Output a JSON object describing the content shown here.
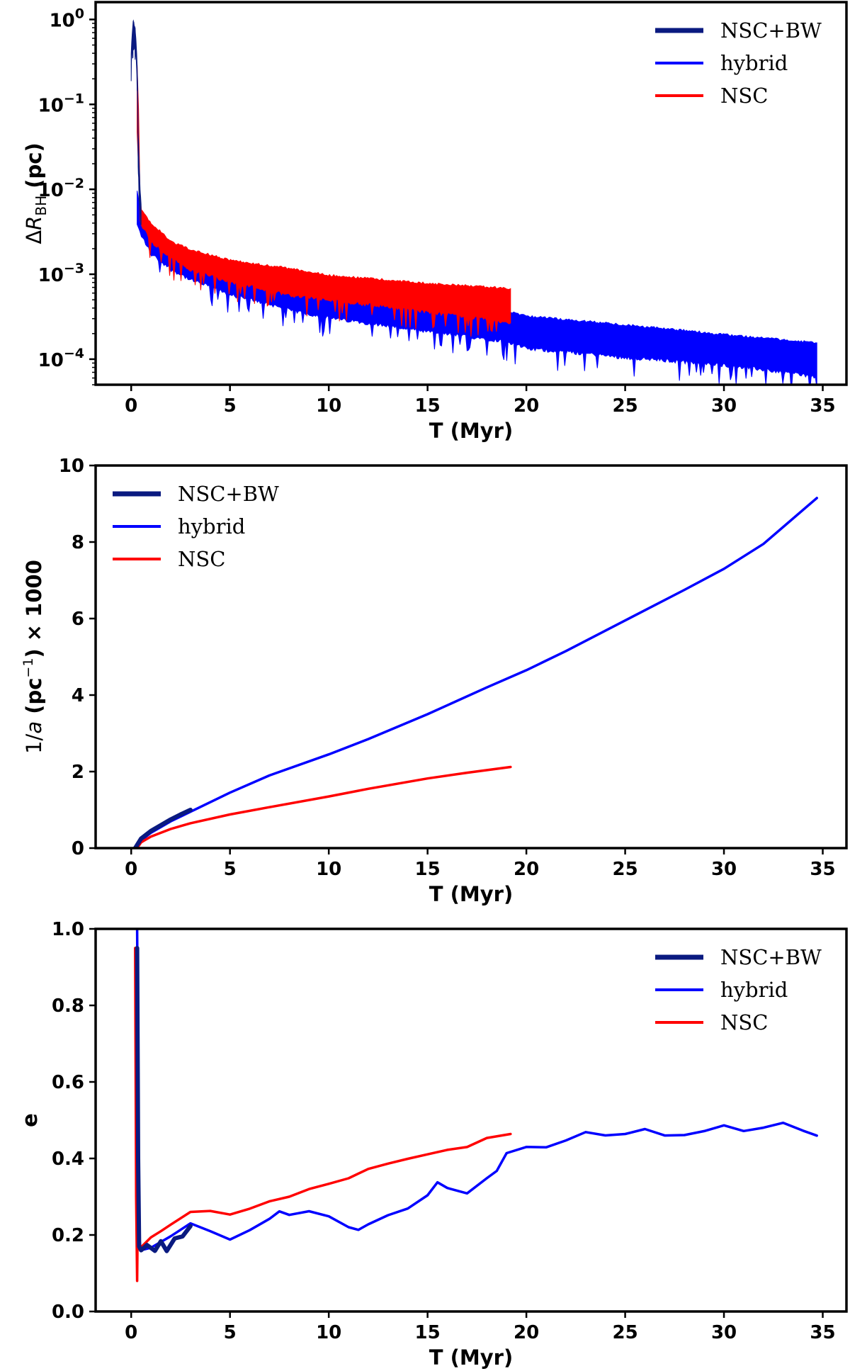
{
  "chart_data": [
    {
      "type": "line",
      "panel": "top",
      "title": "",
      "xlabel": "T (Myr)",
      "ylabel": "ΔR_BH (pc)",
      "ylabel_parts": {
        "delta": "Δ",
        "symbol": "R",
        "subscript": "BH",
        "unit": " (pc)"
      },
      "yscale": "log",
      "xlim": [
        -1.8,
        36.2
      ],
      "ylim": [
        5e-05,
        1.6
      ],
      "xticks": [
        0,
        5,
        10,
        15,
        20,
        25,
        30,
        35
      ],
      "xtick_labels": [
        "0",
        "5",
        "10",
        "15",
        "20",
        "25",
        "30",
        "35"
      ],
      "yticks": [
        0.0001,
        0.001,
        0.01,
        0.1,
        1
      ],
      "ytick_labels": [
        {
          "base": "10",
          "exp": "−4"
        },
        {
          "base": "10",
          "exp": "−3"
        },
        {
          "base": "10",
          "exp": "−2"
        },
        {
          "base": "10",
          "exp": "−1"
        },
        {
          "base": "10",
          "exp": "0"
        }
      ],
      "legend": {
        "position": "upper-right",
        "entries": [
          "NSC+BW",
          "hybrid",
          "NSC"
        ]
      },
      "series": [
        {
          "name": "NSC+BW",
          "color": "#0a1a80",
          "x": [
            0,
            0.1,
            0.2,
            0.3,
            0.35,
            0.4,
            0.45,
            0.5
          ],
          "upper": [
            0.4,
            1.0,
            0.8,
            0.3,
            0.05,
            0.02,
            0.01,
            0.007
          ],
          "lower": [
            0.3,
            0.7,
            0.5,
            0.2,
            0.02,
            0.008,
            0.005,
            0.004
          ]
        },
        {
          "name": "hybrid",
          "color": "#0000ff",
          "x": [
            0.3,
            0.5,
            1,
            2,
            3,
            5,
            8,
            10,
            15,
            19,
            20,
            25,
            30,
            34.7
          ],
          "upper": [
            0.01,
            0.005,
            0.0032,
            0.0022,
            0.0018,
            0.0012,
            0.0009,
            0.0007,
            0.0005,
            0.00038,
            0.00033,
            0.00026,
            0.0002,
            0.00016
          ],
          "lower": [
            0.004,
            0.003,
            0.0018,
            0.0012,
            0.0009,
            0.0006,
            0.0004,
            0.00032,
            0.00022,
            0.00017,
            0.00014,
            0.00011,
            9e-05,
            6.5e-05
          ]
        },
        {
          "name": "NSC",
          "color": "#ff0000",
          "x": [
            0.3,
            0.4,
            0.5,
            1,
            2,
            3,
            5,
            8,
            10,
            15,
            19.2
          ],
          "upper": [
            0.3,
            0.012,
            0.006,
            0.004,
            0.0025,
            0.002,
            0.0015,
            0.0012,
            0.001,
            0.0008,
            0.0007
          ],
          "lower": [
            0.05,
            0.005,
            0.004,
            0.0025,
            0.0016,
            0.0012,
            0.00085,
            0.0006,
            0.00052,
            0.00038,
            0.00028
          ]
        }
      ]
    },
    {
      "type": "line",
      "panel": "middle",
      "title": "",
      "xlabel": "T (Myr)",
      "ylabel": "1/a (pc⁻¹) × 1000",
      "ylabel_parts": {
        "prefix": "1/",
        "var": "a",
        "unit_open": " (pc",
        "exp": "−1",
        "unit_close": ") × 1000"
      },
      "yscale": "linear",
      "xlim": [
        -1.8,
        36.2
      ],
      "ylim": [
        0,
        10
      ],
      "xticks": [
        0,
        5,
        10,
        15,
        20,
        25,
        30,
        35
      ],
      "xtick_labels": [
        "0",
        "5",
        "10",
        "15",
        "20",
        "25",
        "30",
        "35"
      ],
      "yticks": [
        0,
        2,
        4,
        6,
        8,
        10
      ],
      "ytick_labels": [
        "0",
        "2",
        "4",
        "6",
        "8",
        "10"
      ],
      "legend": {
        "position": "upper-left",
        "entries": [
          "NSC+BW",
          "hybrid",
          "NSC"
        ]
      },
      "series": [
        {
          "name": "NSC+BW",
          "color": "#0a1a80",
          "x": [
            0.2,
            0.5,
            1,
            1.5,
            2,
            2.5,
            3
          ],
          "y": [
            0,
            0.25,
            0.45,
            0.6,
            0.75,
            0.88,
            1.0
          ]
        },
        {
          "name": "hybrid",
          "color": "#0000ff",
          "x": [
            0.2,
            0.5,
            1,
            2,
            3,
            5,
            7,
            10,
            12,
            15,
            18,
            20,
            22,
            25,
            28,
            30,
            32,
            34.7
          ],
          "y": [
            0,
            0.2,
            0.4,
            0.7,
            0.95,
            1.45,
            1.9,
            2.45,
            2.85,
            3.5,
            4.2,
            4.65,
            5.15,
            5.95,
            6.75,
            7.3,
            7.95,
            9.15
          ]
        },
        {
          "name": "NSC",
          "color": "#ff0000",
          "x": [
            0.3,
            0.5,
            1,
            2,
            3,
            5,
            7,
            10,
            12,
            15,
            17,
            19.2
          ],
          "y": [
            0,
            0.15,
            0.3,
            0.5,
            0.65,
            0.88,
            1.07,
            1.35,
            1.55,
            1.82,
            1.97,
            2.12
          ]
        }
      ]
    },
    {
      "type": "line",
      "panel": "bottom",
      "title": "",
      "xlabel": "T (Myr)",
      "ylabel": "e",
      "yscale": "linear",
      "xlim": [
        -1.8,
        36.2
      ],
      "ylim": [
        0,
        1
      ],
      "xticks": [
        0,
        5,
        10,
        15,
        20,
        25,
        30,
        35
      ],
      "xtick_labels": [
        "0",
        "5",
        "10",
        "15",
        "20",
        "25",
        "30",
        "35"
      ],
      "yticks": [
        0,
        0.2,
        0.4,
        0.6,
        0.8,
        1.0
      ],
      "ytick_labels": [
        "0.0",
        "0.2",
        "0.4",
        "0.6",
        "0.8",
        "1.0"
      ],
      "legend": {
        "position": "upper-right",
        "entries": [
          "NSC+BW",
          "hybrid",
          "NSC"
        ]
      },
      "series": [
        {
          "name": "NSC+BW",
          "color": "#0a1a80",
          "x": [
            0.3,
            0.35,
            0.4,
            0.5,
            0.8,
            1.2,
            1.5,
            1.8,
            2.2,
            2.6,
            3.0
          ],
          "y": [
            0.95,
            0.4,
            0.17,
            0.16,
            0.17,
            0.16,
            0.18,
            0.16,
            0.19,
            0.2,
            0.22
          ]
        },
        {
          "name": "hybrid",
          "color": "#0000ff",
          "x": [
            0.3,
            0.35,
            0.4,
            0.45,
            0.5,
            1,
            2,
            3,
            4,
            5,
            6,
            7,
            7.5,
            8,
            9,
            10,
            11,
            11.5,
            12,
            13,
            14,
            15,
            15.5,
            16,
            17,
            18,
            18.5,
            19,
            20,
            21,
            22,
            23,
            24,
            25,
            26,
            27,
            28,
            29,
            30,
            31,
            32,
            33,
            34,
            34.7
          ],
          "y": [
            1.0,
            0.6,
            0.2,
            0.17,
            0.16,
            0.17,
            0.2,
            0.23,
            0.21,
            0.19,
            0.21,
            0.24,
            0.26,
            0.25,
            0.26,
            0.25,
            0.22,
            0.21,
            0.23,
            0.25,
            0.27,
            0.3,
            0.34,
            0.32,
            0.31,
            0.35,
            0.37,
            0.41,
            0.43,
            0.43,
            0.45,
            0.47,
            0.46,
            0.46,
            0.48,
            0.46,
            0.46,
            0.47,
            0.49,
            0.47,
            0.48,
            0.49,
            0.47,
            0.46
          ]
        },
        {
          "name": "NSC",
          "color": "#ff0000",
          "x": [
            0.2,
            0.25,
            0.3,
            0.35,
            0.4,
            0.5,
            1,
            1.5,
            2,
            3,
            4,
            5,
            6,
            7,
            8,
            9,
            10,
            11,
            12,
            13,
            14,
            15,
            16,
            17,
            18,
            19.2
          ],
          "y": [
            0.95,
            0.3,
            0.08,
            0.35,
            0.18,
            0.17,
            0.19,
            0.21,
            0.23,
            0.26,
            0.26,
            0.25,
            0.27,
            0.29,
            0.3,
            0.32,
            0.33,
            0.35,
            0.37,
            0.39,
            0.4,
            0.41,
            0.42,
            0.43,
            0.45,
            0.46
          ]
        }
      ]
    }
  ]
}
